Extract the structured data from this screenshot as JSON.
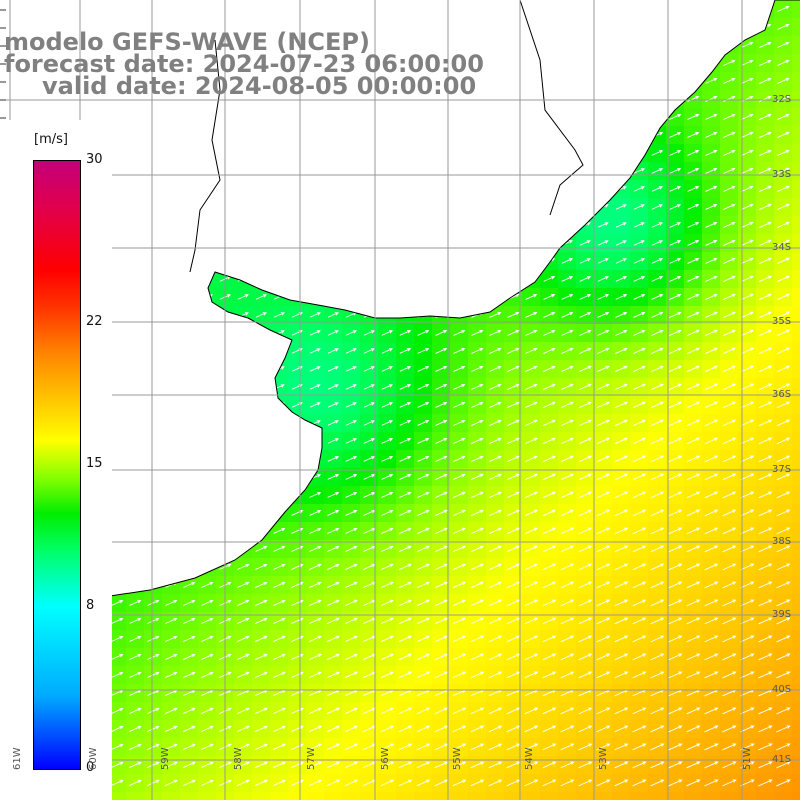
{
  "title": {
    "line1": "modelo GEFS-WAVE (NCEP)",
    "line2": "forecast date: 2024-07-23 06:00:00",
    "line3": "valid date: 2024-08-05 00:00:00"
  },
  "colorbar": {
    "unit": "[m/s]",
    "min": 0,
    "max": 30,
    "ticks": [
      "0",
      "8",
      "15",
      "22",
      "30"
    ],
    "tick_values": [
      0,
      8,
      15,
      22,
      30
    ]
  },
  "map": {
    "lat_labels": [
      "32S",
      "33S",
      "34S",
      "35S",
      "36S",
      "37S",
      "38S",
      "39S",
      "40S",
      "41S"
    ],
    "lat_values": [
      -32,
      -33,
      -34,
      -35,
      -36,
      -37,
      -38,
      -39,
      -40,
      -41
    ],
    "lon_labels": [
      "61W",
      "60W",
      "59W",
      "58W",
      "57W",
      "56W",
      "55W",
      "54W",
      "53W",
      "51W"
    ],
    "lon_values": [
      -61,
      -60,
      -59,
      -58,
      -57,
      -56,
      -55,
      -54,
      -53,
      -51
    ],
    "land_color": "#ffffff",
    "grid_color": "#999999",
    "arrow_color": "#ffffff"
  }
}
